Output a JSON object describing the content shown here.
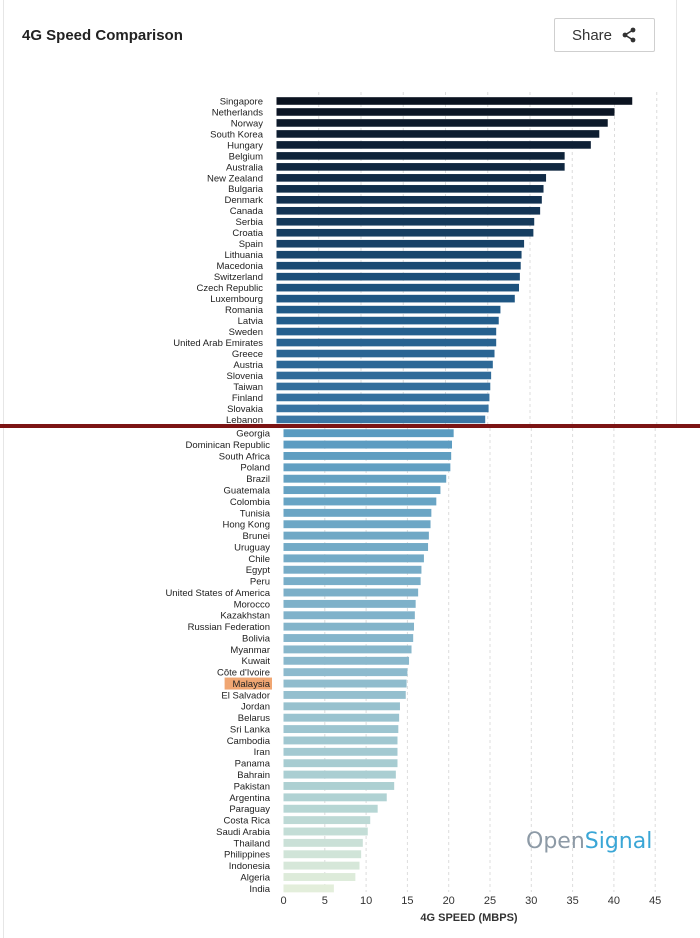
{
  "header": {
    "title": "4G Speed Comparison",
    "share_label": "Share"
  },
  "brand": {
    "part1": "Open",
    "part2": "Signal",
    "color1": "#8d9aa6",
    "color2": "#3aa6d6"
  },
  "colors": {
    "highlight": "#f0a672",
    "divider": "#7c1414"
  },
  "chart_data": {
    "type": "bar",
    "orientation": "horizontal",
    "title": "4G Speed Comparison",
    "xlabel": "4G SPEED (MBPS)",
    "xlim": [
      0,
      45
    ],
    "xticks": [
      0,
      5,
      10,
      15,
      20,
      25,
      30,
      35,
      40,
      45
    ],
    "grid": "vertical dashed",
    "highlight": "Malaysia",
    "section_top": {
      "categories": [
        "Singapore",
        "Netherlands",
        "Norway",
        "South Korea",
        "Hungary",
        "Belgium",
        "Australia",
        "New Zealand",
        "Bulgaria",
        "Denmark",
        "Canada",
        "Serbia",
        "Croatia",
        "Spain",
        "Lithuania",
        "Macedonia",
        "Switzerland",
        "Czech Republic",
        "Luxembourg",
        "Romania",
        "Latvia",
        "Sweden",
        "United Arab Emirates",
        "Greece",
        "Austria",
        "Slovenia",
        "Taiwan",
        "Finland",
        "Slovakia",
        "Lebanon"
      ],
      "values": [
        42.1,
        40.0,
        39.2,
        38.2,
        37.2,
        34.1,
        34.1,
        31.9,
        31.6,
        31.4,
        31.2,
        30.5,
        30.4,
        29.3,
        29.0,
        28.9,
        28.8,
        28.7,
        28.2,
        26.5,
        26.3,
        26.0,
        26.0,
        25.8,
        25.6,
        25.4,
        25.3,
        25.2,
        25.1,
        24.7
      ]
    },
    "section_bottom": {
      "categories": [
        "Georgia",
        "Dominican Republic",
        "South Africa",
        "Poland",
        "Brazil",
        "Guatemala",
        "Colombia",
        "Tunisia",
        "Hong Kong",
        "Brunei",
        "Uruguay",
        "Chile",
        "Egypt",
        "Peru",
        "United States of America",
        "Morocco",
        "Kazakhstan",
        "Russian Federation",
        "Bolivia",
        "Myanmar",
        "Kuwait",
        "Côte d'Ivoire",
        "Malaysia",
        "El Salvador",
        "Jordan",
        "Belarus",
        "Sri Lanka",
        "Cambodia",
        "Iran",
        "Panama",
        "Bahrain",
        "Pakistan",
        "Argentina",
        "Paraguay",
        "Costa Rica",
        "Saudi Arabia",
        "Thailand",
        "Philippines",
        "Indonesia",
        "Algeria",
        "India"
      ],
      "values": [
        20.6,
        20.4,
        20.3,
        20.2,
        19.7,
        19.0,
        18.5,
        17.9,
        17.8,
        17.6,
        17.5,
        17.0,
        16.7,
        16.6,
        16.3,
        16.0,
        15.9,
        15.8,
        15.7,
        15.5,
        15.2,
        15.0,
        14.9,
        14.8,
        14.1,
        14.0,
        13.9,
        13.8,
        13.8,
        13.8,
        13.6,
        13.4,
        12.5,
        11.4,
        10.5,
        10.2,
        9.6,
        9.4,
        9.2,
        8.7,
        6.1
      ]
    }
  }
}
